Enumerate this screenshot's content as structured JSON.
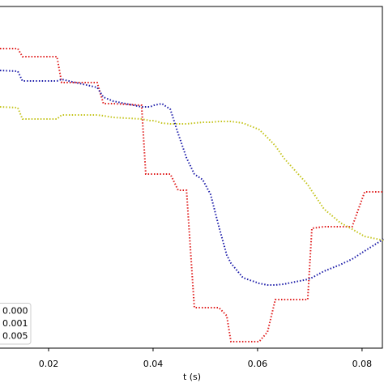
{
  "chart_data": {
    "type": "line",
    "xlabel": "t (s)",
    "x": [
      0.0107,
      0.0141,
      0.015,
      0.0216,
      0.0225,
      0.0293,
      0.0305,
      0.0324,
      0.0378,
      0.0386,
      0.0394,
      0.0402,
      0.0417,
      0.0433,
      0.0448,
      0.0464,
      0.0479,
      0.0495,
      0.051,
      0.0526,
      0.0541,
      0.0549,
      0.0572,
      0.0603,
      0.0619,
      0.0634,
      0.065,
      0.0696,
      0.0704,
      0.0727,
      0.0758,
      0.0781,
      0.0805,
      0.0842
    ],
    "series": [
      {
        "name": "0.000",
        "color": "#e01c1c",
        "values": [
          370,
          370,
          360,
          360,
          328,
          328,
          302,
          302,
          300,
          215,
          215,
          215,
          215,
          215,
          195,
          195,
          50,
          50,
          50,
          50,
          40,
          8,
          8,
          8,
          20,
          60,
          60,
          60,
          148,
          150,
          150,
          150,
          193,
          193
        ]
      },
      {
        "name": "0.001",
        "color": "#1a1aa8",
        "values": [
          343,
          342,
          330,
          330,
          332,
          322,
          310,
          305,
          298,
          298,
          298,
          300,
          302,
          295,
          265,
          235,
          215,
          208,
          190,
          150,
          115,
          105,
          87,
          80,
          78,
          78,
          79,
          85,
          87,
          95,
          103,
          110,
          120,
          135
        ]
      },
      {
        "name": "0.005",
        "color": "#c4c41c",
        "values": [
          298,
          297,
          283,
          283,
          288,
          288,
          287,
          285,
          283,
          282,
          281,
          281,
          278,
          277,
          277,
          277,
          278,
          279,
          279,
          280,
          280,
          280,
          278,
          270,
          260,
          250,
          235,
          202,
          194,
          172,
          155,
          147,
          138,
          133
        ]
      }
    ],
    "xlim": [
      0.0107,
      0.0842
    ],
    "ylim": [
      0,
      422
    ],
    "xticks": [
      0.02,
      0.04,
      0.06,
      0.08
    ],
    "legend": "lower left"
  }
}
